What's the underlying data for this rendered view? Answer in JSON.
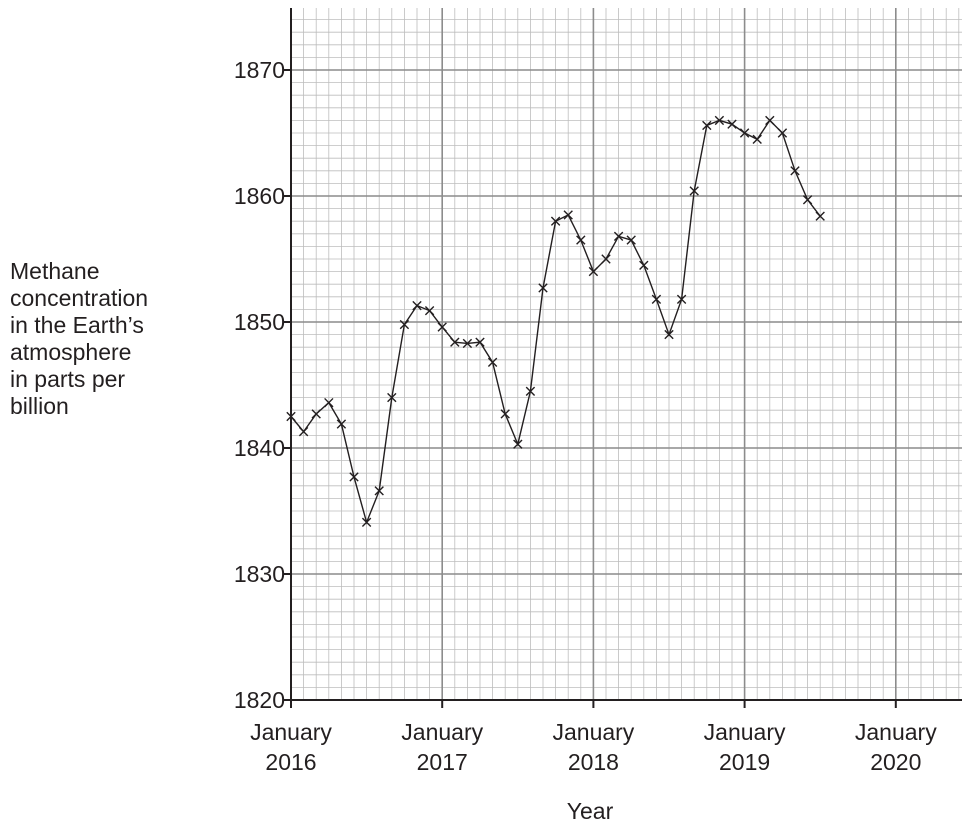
{
  "chart_data": {
    "type": "line",
    "title": "",
    "xlabel": "Year",
    "ylabel": "Methane\nconcentration\nin the Earth’s\natmosphere\nin parts per\nbillion",
    "ylim": [
      1820,
      1875
    ],
    "xlim": [
      "2016-01",
      "2020-06"
    ],
    "yticks": [
      1820,
      1830,
      1840,
      1850,
      1860,
      1870
    ],
    "xtick_labels": [
      {
        "month": 0,
        "line1": "January",
        "line2": "2016"
      },
      {
        "month": 12,
        "line1": "January",
        "line2": "2017"
      },
      {
        "month": 24,
        "line1": "January",
        "line2": "2018"
      },
      {
        "month": 36,
        "line1": "January",
        "line2": "2019"
      },
      {
        "month": 48,
        "line1": "January",
        "line2": "2020"
      }
    ],
    "grid": true,
    "marker": "x",
    "series": [
      {
        "x": [
          "2016-01",
          "2016-02",
          "2016-03",
          "2016-04",
          "2016-05",
          "2016-06",
          "2016-07",
          "2016-08",
          "2016-09",
          "2016-10",
          "2016-11",
          "2016-12",
          "2017-01",
          "2017-02",
          "2017-03",
          "2017-04",
          "2017-05",
          "2017-06",
          "2017-07",
          "2017-08",
          "2017-09",
          "2017-10",
          "2017-11",
          "2017-12",
          "2018-01",
          "2018-02",
          "2018-03",
          "2018-04",
          "2018-05",
          "2018-06",
          "2018-07",
          "2018-08",
          "2018-09",
          "2018-10",
          "2018-11",
          "2018-12",
          "2019-01",
          "2019-02",
          "2019-03",
          "2019-04",
          "2019-05",
          "2019-06",
          "2019-07"
        ],
        "values": [
          1842.5,
          1841.3,
          1842.7,
          1843.6,
          1841.9,
          1837.7,
          1834.1,
          1836.6,
          1844.0,
          1849.8,
          1851.3,
          1850.9,
          1849.6,
          1848.4,
          1848.3,
          1848.4,
          1846.8,
          1842.7,
          1840.3,
          1844.5,
          1852.7,
          1858.0,
          1858.5,
          1856.5,
          1854.0,
          1855.0,
          1856.8,
          1856.5,
          1854.5,
          1851.8,
          1849.0,
          1851.8,
          1860.4,
          1865.6,
          1866.0,
          1865.7,
          1865.0,
          1864.5,
          1866.0,
          1865.0,
          1862.0,
          1859.7,
          1858.4
        ]
      }
    ]
  }
}
